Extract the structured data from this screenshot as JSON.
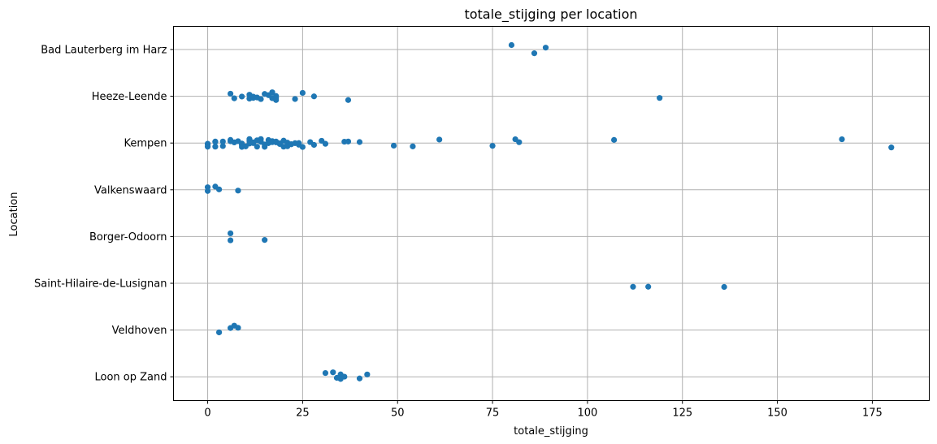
{
  "chart_data": {
    "type": "scatter",
    "title": "totale_stijging per location",
    "xlabel": "totale_stijging",
    "ylabel": "Location",
    "xlim": [
      -9,
      190
    ],
    "xticks": [
      0,
      25,
      50,
      75,
      100,
      125,
      150,
      175
    ],
    "xtick_labels": [
      "0",
      "25",
      "50",
      "75",
      "100",
      "125",
      "150",
      "175"
    ],
    "grid": true,
    "legend": "none",
    "point_color": "#1f77b4",
    "categories": [
      "Bad Lauterberg im Harz",
      "Heeze-Leende",
      "Kempen",
      "Valkenswaard",
      "Borger-Odoorn",
      "Saint-Hilaire-de-Lusignan",
      "Veldhoven",
      "Loon op Zand"
    ],
    "points": [
      [
        "Bad Lauterberg im Harz",
        80
      ],
      [
        "Bad Lauterberg im Harz",
        86
      ],
      [
        "Bad Lauterberg im Harz",
        89
      ],
      [
        "Heeze-Leende",
        6
      ],
      [
        "Heeze-Leende",
        7
      ],
      [
        "Heeze-Leende",
        9
      ],
      [
        "Heeze-Leende",
        11
      ],
      [
        "Heeze-Leende",
        11
      ],
      [
        "Heeze-Leende",
        11
      ],
      [
        "Heeze-Leende",
        12
      ],
      [
        "Heeze-Leende",
        12
      ],
      [
        "Heeze-Leende",
        13
      ],
      [
        "Heeze-Leende",
        14
      ],
      [
        "Heeze-Leende",
        15
      ],
      [
        "Heeze-Leende",
        16
      ],
      [
        "Heeze-Leende",
        17
      ],
      [
        "Heeze-Leende",
        17
      ],
      [
        "Heeze-Leende",
        17
      ],
      [
        "Heeze-Leende",
        18
      ],
      [
        "Heeze-Leende",
        18
      ],
      [
        "Heeze-Leende",
        18
      ],
      [
        "Heeze-Leende",
        23
      ],
      [
        "Heeze-Leende",
        25
      ],
      [
        "Heeze-Leende",
        28
      ],
      [
        "Heeze-Leende",
        37
      ],
      [
        "Heeze-Leende",
        119
      ],
      [
        "Kempen",
        0
      ],
      [
        "Kempen",
        0
      ],
      [
        "Kempen",
        0
      ],
      [
        "Kempen",
        2
      ],
      [
        "Kempen",
        2
      ],
      [
        "Kempen",
        2
      ],
      [
        "Kempen",
        4
      ],
      [
        "Kempen",
        4
      ],
      [
        "Kempen",
        6
      ],
      [
        "Kempen",
        6
      ],
      [
        "Kempen",
        7
      ],
      [
        "Kempen",
        8
      ],
      [
        "Kempen",
        9
      ],
      [
        "Kempen",
        9
      ],
      [
        "Kempen",
        9
      ],
      [
        "Kempen",
        10
      ],
      [
        "Kempen",
        11
      ],
      [
        "Kempen",
        11
      ],
      [
        "Kempen",
        11
      ],
      [
        "Kempen",
        12
      ],
      [
        "Kempen",
        12
      ],
      [
        "Kempen",
        13
      ],
      [
        "Kempen",
        13
      ],
      [
        "Kempen",
        14
      ],
      [
        "Kempen",
        14
      ],
      [
        "Kempen",
        14
      ],
      [
        "Kempen",
        15
      ],
      [
        "Kempen",
        15
      ],
      [
        "Kempen",
        16
      ],
      [
        "Kempen",
        16
      ],
      [
        "Kempen",
        17
      ],
      [
        "Kempen",
        17
      ],
      [
        "Kempen",
        18
      ],
      [
        "Kempen",
        18
      ],
      [
        "Kempen",
        18
      ],
      [
        "Kempen",
        19
      ],
      [
        "Kempen",
        19
      ],
      [
        "Kempen",
        20
      ],
      [
        "Kempen",
        20
      ],
      [
        "Kempen",
        21
      ],
      [
        "Kempen",
        21
      ],
      [
        "Kempen",
        22
      ],
      [
        "Kempen",
        22
      ],
      [
        "Kempen",
        23
      ],
      [
        "Kempen",
        24
      ],
      [
        "Kempen",
        24
      ],
      [
        "Kempen",
        25
      ],
      [
        "Kempen",
        27
      ],
      [
        "Kempen",
        28
      ],
      [
        "Kempen",
        30
      ],
      [
        "Kempen",
        31
      ],
      [
        "Kempen",
        36
      ],
      [
        "Kempen",
        37
      ],
      [
        "Kempen",
        40
      ],
      [
        "Kempen",
        49
      ],
      [
        "Kempen",
        54
      ],
      [
        "Kempen",
        61
      ],
      [
        "Kempen",
        75
      ],
      [
        "Kempen",
        81
      ],
      [
        "Kempen",
        82
      ],
      [
        "Kempen",
        107
      ],
      [
        "Kempen",
        167
      ],
      [
        "Kempen",
        180
      ],
      [
        "Valkenswaard",
        0
      ],
      [
        "Valkenswaard",
        0
      ],
      [
        "Valkenswaard",
        2
      ],
      [
        "Valkenswaard",
        3
      ],
      [
        "Valkenswaard",
        8
      ],
      [
        "Borger-Odoorn",
        6
      ],
      [
        "Borger-Odoorn",
        6
      ],
      [
        "Borger-Odoorn",
        15
      ],
      [
        "Saint-Hilaire-de-Lusignan",
        112
      ],
      [
        "Saint-Hilaire-de-Lusignan",
        116
      ],
      [
        "Saint-Hilaire-de-Lusignan",
        136
      ],
      [
        "Veldhoven",
        3
      ],
      [
        "Veldhoven",
        6
      ],
      [
        "Veldhoven",
        7
      ],
      [
        "Veldhoven",
        8
      ],
      [
        "Loon op Zand",
        31
      ],
      [
        "Loon op Zand",
        33
      ],
      [
        "Loon op Zand",
        34
      ],
      [
        "Loon op Zand",
        35
      ],
      [
        "Loon op Zand",
        35
      ],
      [
        "Loon op Zand",
        36
      ],
      [
        "Loon op Zand",
        40
      ],
      [
        "Loon op Zand",
        42
      ]
    ]
  }
}
